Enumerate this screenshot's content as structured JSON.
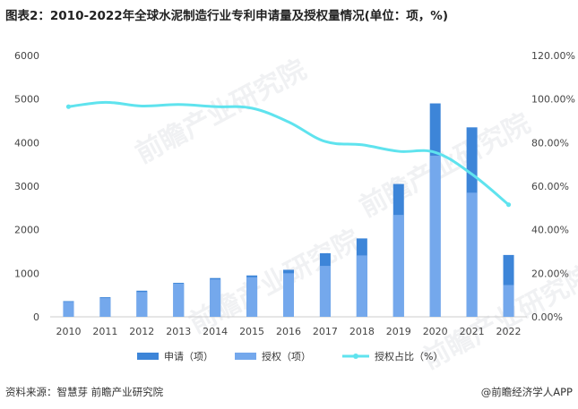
{
  "title": "图表2：2010-2022年全球水泥制造行业专利申请量及授权量情况(单位：项，%)",
  "footer": {
    "source": "资料来源：智慧芽 前瞻产业研究院",
    "brand": "@前瞻经济学人APP"
  },
  "watermark": "前瞻产业研究院",
  "colors": {
    "apply": "#3d85d8",
    "grant": "#74a8ec",
    "ratio": "#5fe3ee",
    "axis": "#cccccc"
  },
  "chart_data": {
    "type": "bar",
    "categories": [
      "2010",
      "2011",
      "2012",
      "2013",
      "2014",
      "2015",
      "2016",
      "2017",
      "2018",
      "2019",
      "2020",
      "2021",
      "2022"
    ],
    "series": [
      {
        "name": "申请（项）",
        "type": "bar",
        "values": [
          360,
          450,
          600,
          780,
          890,
          950,
          1080,
          1460,
          1800,
          3050,
          4900,
          4350,
          1420
        ]
      },
      {
        "name": "授权（项）",
        "type": "bar",
        "values": [
          345,
          430,
          570,
          760,
          860,
          910,
          1000,
          1170,
          1410,
          2340,
          3700,
          2850,
          730
        ]
      },
      {
        "name": "授权占比（%）",
        "type": "line",
        "axis": "right",
        "values": [
          96.5,
          98.5,
          96.8,
          97.5,
          96.5,
          95.8,
          89.5,
          80.5,
          79.0,
          76.0,
          75.5,
          65.5,
          51.5
        ]
      }
    ],
    "left_axis": {
      "ylim": [
        0,
        6000
      ],
      "ticks": [
        "0",
        "1000",
        "2000",
        "3000",
        "4000",
        "5000",
        "6000"
      ]
    },
    "right_axis": {
      "ylim": [
        0,
        120
      ],
      "ticks": [
        "0.00%",
        "20.00%",
        "40.00%",
        "60.00%",
        "80.00%",
        "100.00%",
        "120.00%"
      ]
    },
    "legend_position": "bottom"
  }
}
